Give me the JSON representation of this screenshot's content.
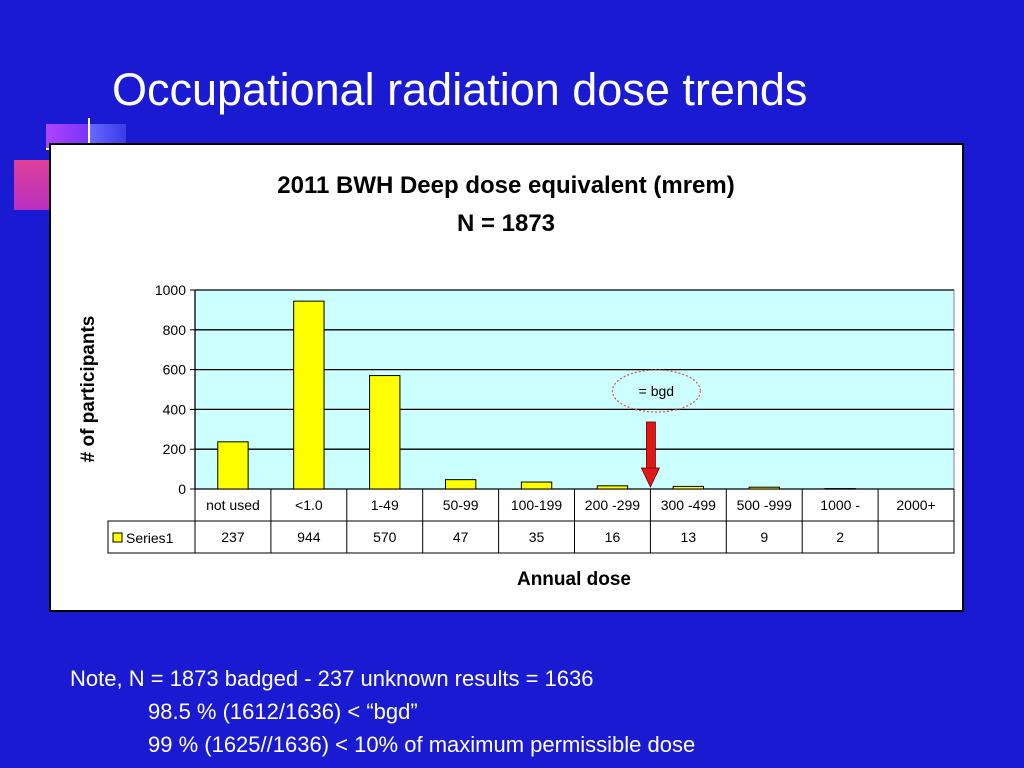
{
  "slide": {
    "title": "Occupational radiation dose trends",
    "colors": {
      "background": "#1a1ad2",
      "bar": "#ffff00",
      "plot_area": "#ccffff",
      "arrow": "#e01818",
      "callout_ring": "#e05050"
    }
  },
  "chart_data": {
    "type": "bar",
    "title": "2011 BWH Deep dose equivalent (mrem)",
    "subtitle": "N = 1873",
    "xlabel": "Annual dose",
    "ylabel": "# of participants",
    "categories": [
      "not used",
      "<1.0",
      "1-49",
      "50-99",
      "100-199",
      "200 -299",
      "300 -499",
      "500 -999",
      "1000 -",
      "2000+"
    ],
    "series": [
      {
        "name": "Series1",
        "values": [
          237,
          944,
          570,
          47,
          35,
          16,
          13,
          9,
          2,
          null
        ]
      }
    ],
    "ylim": [
      0,
      1000
    ],
    "yticks": [
      0,
      200,
      400,
      600,
      800,
      1000
    ],
    "grid": true,
    "legend": "data-table-left",
    "annotation": {
      "text": "= bgd",
      "points_between": [
        "200 -299",
        "300 -499"
      ]
    }
  },
  "notes": [
    "Note,  N = 1873 badged - 237 unknown results =  1636",
    "98.5 % (1612/1636) < “bgd”",
    "99 % (1625//1636) < 10% of maximum permissible dose"
  ]
}
